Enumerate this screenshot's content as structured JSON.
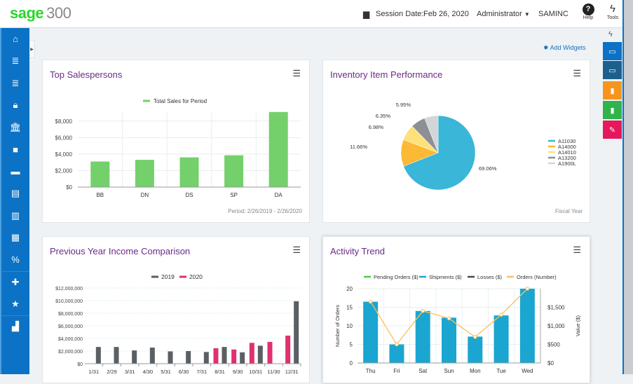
{
  "header": {
    "brand": "sage",
    "product": "300",
    "session_label": "Session Date:",
    "session_date": "Feb 26, 2020",
    "user": "Administrator",
    "company": "SAMINC",
    "help": "Help",
    "tools": "Tools"
  },
  "sidebar": {
    "items": [
      {
        "icon": "home-icon"
      },
      {
        "icon": "receivables-icon"
      },
      {
        "icon": "payables-icon"
      },
      {
        "icon": "lock-icon"
      },
      {
        "icon": "bank-icon"
      },
      {
        "icon": "briefcase-icon"
      },
      {
        "icon": "folder-icon"
      },
      {
        "icon": "inventory-icon"
      },
      {
        "icon": "document-icon"
      },
      {
        "icon": "grid-icon"
      },
      {
        "icon": "percent-icon"
      },
      {
        "icon": "favorite-settings-icon"
      },
      {
        "icon": "star-settings-icon"
      },
      {
        "icon": "bar-chart-icon"
      }
    ]
  },
  "add_widgets": "Add Widgets",
  "rail": [
    {
      "icon": "window-badge-icon",
      "color": "#0b72c5"
    },
    {
      "icon": "window-clock-icon",
      "color": "#1d5f8c"
    },
    {
      "icon": "report-icon",
      "color": "#f7941d"
    },
    {
      "icon": "search-doc-icon",
      "color": "#2fb34a"
    },
    {
      "icon": "pen-icon",
      "color": "#e6175c"
    }
  ],
  "widgets": {
    "sales": {
      "title": "Top Salespersons",
      "footer": "Period: 2/26/2019 - 2/26/2020"
    },
    "inventory": {
      "title": "Inventory Item Performance",
      "footer": "Fiscal Year"
    },
    "income": {
      "title": "Previous Year Income Comparison"
    },
    "activity": {
      "title": "Activity Trend"
    }
  },
  "chart_data": [
    {
      "type": "bar",
      "legend": [
        "Total Sales for Period"
      ],
      "categories": [
        "BB",
        "DN",
        "DS",
        "SP",
        "DA"
      ],
      "values": [
        3100,
        3300,
        3600,
        3850,
        9100
      ],
      "yticks": [
        "$0",
        "$2,000",
        "$4,000",
        "$6,000",
        "$8,000"
      ],
      "ylim": [
        0,
        9000
      ],
      "color": "#74d06b",
      "legend_position": "top"
    },
    {
      "type": "pie",
      "legend": [
        "A11030",
        "A14000",
        "A14010",
        "A13200",
        "A1900L"
      ],
      "values": [
        69.06,
        11.66,
        6.98,
        6.35,
        5.95
      ],
      "labels": [
        "69.06%",
        "11.66%",
        "6.98%",
        "6.35%",
        "5.95%"
      ],
      "colors": [
        "#39b6d8",
        "#fbb935",
        "#fde17a",
        "#8c8f93",
        "#d4d5d7"
      ],
      "legend_position": "right"
    },
    {
      "type": "bar",
      "categories": [
        "1/31",
        "2/29",
        "3/31",
        "4/30",
        "5/31",
        "6/30",
        "7/31",
        "8/31",
        "9/30",
        "10/31",
        "11/30",
        "12/31"
      ],
      "series": [
        {
          "name": "2019",
          "color": "#5a5f66",
          "values": [
            2650000,
            2650000,
            2100000,
            2550000,
            1950000,
            2000000,
            1850000,
            2650000,
            1800000,
            2850000,
            0,
            9900000
          ]
        },
        {
          "name": "2020",
          "color": "#e0306f",
          "values": [
            0,
            0,
            0,
            0,
            20000,
            20000,
            20000,
            2450000,
            2250000,
            3300000,
            3450000,
            4450000
          ]
        }
      ],
      "yticks": [
        "$0",
        "$2,000,000",
        "$4,000,000",
        "$6,000,000",
        "$8,000,000",
        "$10,000,000",
        "$12,000,000"
      ],
      "ylim": [
        0,
        12000000
      ],
      "legend_position": "top"
    },
    {
      "type": "bar+line",
      "categories": [
        "Thu",
        "Fri",
        "Sat",
        "Sun",
        "Mon",
        "Tue",
        "Wed"
      ],
      "legend": [
        {
          "name": "Pending Orders ($)",
          "color": "#4cc94c"
        },
        {
          "name": "Shipments ($)",
          "color": "#1aa6d1"
        },
        {
          "name": "Losses ($)",
          "color": "#444a52"
        },
        {
          "name": "Orders (Number)",
          "color": "#fbc05a"
        }
      ],
      "shipments": [
        1650,
        500,
        1400,
        1220,
        710,
        1280,
        2000
      ],
      "orders": [
        16.5,
        5,
        14,
        12,
        7,
        13,
        20
      ],
      "ylabel_left": "Number of Orders",
      "ylabel_right": "Value ($)",
      "yticks_left": [
        "0",
        "5",
        "10",
        "15",
        "20"
      ],
      "yticks_right": [
        "$0",
        "$500",
        "$1,000",
        "$1,500"
      ],
      "ylim_left": [
        0,
        20
      ],
      "ylim_right": [
        0,
        2000
      ],
      "legend_position": "top"
    }
  ]
}
